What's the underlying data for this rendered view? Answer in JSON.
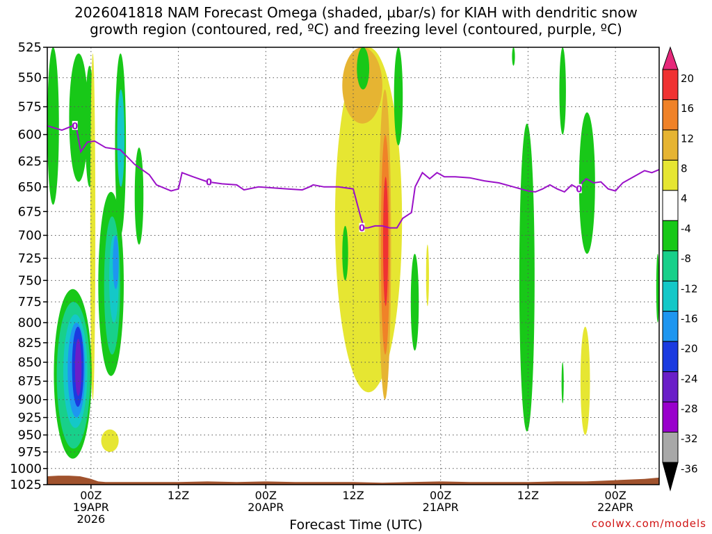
{
  "title_line1": "2026041818 NAM Forecast Omega (shaded, µbar/s) for KIAH with dendritic snow",
  "title_line2": "growth region (contoured, red, ºC) and freezing level (contoured, purple, ºC)",
  "credit": "coolwx.com/models",
  "chart_data": {
    "type": "heatmap",
    "xlabel": "Forecast Time (UTC)",
    "ylabel": "",
    "x_unit": "forecast hour from 2026-04-18 18Z",
    "xlim": [
      0,
      84
    ],
    "ylim": [
      525,
      1025
    ],
    "y_scale": "log-pressure",
    "y_ticks": [
      525,
      550,
      575,
      600,
      625,
      650,
      675,
      700,
      725,
      750,
      775,
      800,
      825,
      850,
      875,
      900,
      925,
      950,
      975,
      1000,
      1025
    ],
    "x_ticks": [
      {
        "x": 6,
        "labels": [
          "00Z",
          "19APR",
          "2026"
        ]
      },
      {
        "x": 18,
        "labels": [
          "12Z"
        ]
      },
      {
        "x": 30,
        "labels": [
          "00Z",
          "20APR"
        ]
      },
      {
        "x": 42,
        "labels": [
          "12Z"
        ]
      },
      {
        "x": 54,
        "labels": [
          "00Z",
          "21APR"
        ]
      },
      {
        "x": 66,
        "labels": [
          "12Z"
        ]
      },
      {
        "x": 78,
        "labels": [
          "00Z",
          "22APR"
        ]
      }
    ],
    "grid": true,
    "colorbar": {
      "levels": [
        -36,
        -32,
        -28,
        -24,
        -20,
        -16,
        -12,
        -8,
        -4,
        4,
        8,
        12,
        16,
        20
      ],
      "colors": [
        "#000000",
        "#a8a8a8",
        "#9900cc",
        "#6a1fc8",
        "#1b3be0",
        "#1e96f0",
        "#14c8c8",
        "#18d08a",
        "#18c818",
        "#ffffff",
        "#e6e632",
        "#e6b432",
        "#f08228",
        "#f03232",
        "#e6287a"
      ],
      "labeled": [
        20,
        16,
        12,
        8,
        4,
        -4,
        -8,
        -12,
        -16,
        -20,
        -24,
        -28,
        -32,
        -36
      ]
    },
    "freezing_level": {
      "label": "0",
      "color": "#9a10c8",
      "points": [
        [
          0,
          592
        ],
        [
          2,
          596
        ],
        [
          3.5,
          592
        ],
        [
          4,
          594
        ],
        [
          4.6,
          616
        ],
        [
          5.5,
          607
        ],
        [
          6.5,
          606
        ],
        [
          8,
          612
        ],
        [
          10,
          614
        ],
        [
          12,
          628
        ],
        [
          14,
          638
        ],
        [
          15,
          648
        ],
        [
          17,
          654
        ],
        [
          18,
          652
        ],
        [
          18.5,
          636
        ],
        [
          20,
          640
        ],
        [
          22,
          645
        ],
        [
          24,
          647
        ],
        [
          26,
          648
        ],
        [
          27,
          653
        ],
        [
          29,
          650
        ],
        [
          31,
          651
        ],
        [
          33,
          652
        ],
        [
          35,
          653
        ],
        [
          36,
          650
        ],
        [
          36.5,
          648
        ],
        [
          38,
          650
        ],
        [
          40,
          650
        ],
        [
          42,
          652
        ],
        [
          43,
          680
        ],
        [
          43.5,
          692
        ],
        [
          44,
          692
        ],
        [
          45,
          690
        ],
        [
          46,
          690
        ],
        [
          47,
          692
        ],
        [
          48,
          692
        ],
        [
          48.8,
          682
        ],
        [
          50,
          676
        ],
        [
          50.5,
          650
        ],
        [
          51.5,
          636
        ],
        [
          52.5,
          642
        ],
        [
          53.5,
          636
        ],
        [
          54.5,
          640
        ],
        [
          56,
          640
        ],
        [
          58,
          641
        ],
        [
          60,
          644
        ],
        [
          62,
          646
        ],
        [
          64,
          650
        ],
        [
          66,
          654
        ],
        [
          67,
          655
        ],
        [
          68,
          652
        ],
        [
          69,
          648
        ],
        [
          70,
          652
        ],
        [
          71,
          655
        ],
        [
          72,
          648
        ],
        [
          73,
          652
        ],
        [
          73.5,
          645
        ],
        [
          74,
          642
        ],
        [
          75,
          646
        ],
        [
          76,
          645
        ],
        [
          77,
          652
        ],
        [
          78,
          654
        ],
        [
          79,
          646
        ],
        [
          80,
          642
        ],
        [
          81,
          638
        ],
        [
          82,
          634
        ],
        [
          83,
          636
        ],
        [
          84,
          633
        ]
      ]
    },
    "omega_features": [
      {
        "x": [
          0,
          1.6
        ],
        "p": [
          525,
          668
        ],
        "value": -6
      },
      {
        "x": [
          3,
          5.6
        ],
        "p": [
          530,
          645
        ],
        "value": -6
      },
      {
        "x": [
          5.2,
          6.4
        ],
        "p": [
          540,
          650
        ],
        "value": -6
      },
      {
        "x": [
          5.9,
          6.6
        ],
        "p": [
          530,
          900
        ],
        "value": 6
      },
      {
        "x": [
          9.3,
          10.8
        ],
        "p": [
          530,
          700
        ],
        "value": -6
      },
      {
        "x": [
          9.6,
          10.6
        ],
        "p": [
          560,
          650
        ],
        "value": -14
      },
      {
        "x": [
          12,
          13.2
        ],
        "p": [
          612,
          710
        ],
        "value": -6
      },
      {
        "x": [
          7,
          10.5
        ],
        "p": [
          655,
          868
        ],
        "value": -6
      },
      {
        "x": [
          7.8,
          10.0
        ],
        "p": [
          680,
          840
        ],
        "value": -10
      },
      {
        "x": [
          8.5,
          9.8
        ],
        "p": [
          700,
          800
        ],
        "value": -14
      },
      {
        "x": [
          9.0,
          9.8
        ],
        "p": [
          700,
          760
        ],
        "value": -18
      },
      {
        "x": [
          0.9,
          6.1
        ],
        "p": [
          760,
          985
        ],
        "value": -6
      },
      {
        "x": [
          1.3,
          5.9
        ],
        "p": [
          775,
          970
        ],
        "value": -10
      },
      {
        "x": [
          2.2,
          5.5
        ],
        "p": [
          790,
          940
        ],
        "value": -14
      },
      {
        "x": [
          2.8,
          5.2
        ],
        "p": [
          800,
          925
        ],
        "value": -18
      },
      {
        "x": [
          3.4,
          5.0
        ],
        "p": [
          805,
          910
        ],
        "value": -22
      },
      {
        "x": [
          3.8,
          4.7
        ],
        "p": [
          820,
          895
        ],
        "value": -26
      },
      {
        "x": [
          7.4,
          9.8
        ],
        "p": [
          942,
          975
        ],
        "value": 6
      },
      {
        "x": [
          39.5,
          48.7
        ],
        "p": [
          525,
          890
        ],
        "value": 6
      },
      {
        "x": [
          40.5,
          46
        ],
        "p": [
          525,
          590
        ],
        "value": 10
      },
      {
        "x": [
          45.5,
          47.2
        ],
        "p": [
          560,
          900
        ],
        "value": 10
      },
      {
        "x": [
          45.8,
          47.0
        ],
        "p": [
          600,
          840
        ],
        "value": 14
      },
      {
        "x": [
          46.1,
          46.8
        ],
        "p": [
          640,
          780
        ],
        "value": 18
      },
      {
        "x": [
          42.5,
          44.2
        ],
        "p": [
          525,
          560
        ],
        "value": -6
      },
      {
        "x": [
          47.6,
          48.8
        ],
        "p": [
          525,
          610
        ],
        "value": -6
      },
      {
        "x": [
          40.5,
          41.3
        ],
        "p": [
          690,
          750
        ],
        "value": -6
      },
      {
        "x": [
          49.9,
          51.0
        ],
        "p": [
          720,
          835
        ],
        "value": -6
      },
      {
        "x": [
          52,
          52.4
        ],
        "p": [
          710,
          780
        ],
        "value": 6
      },
      {
        "x": [
          64.8,
          66.9
        ],
        "p": [
          590,
          945
        ],
        "value": -6
      },
      {
        "x": [
          70.3,
          71.2
        ],
        "p": [
          525,
          600
        ],
        "value": -6
      },
      {
        "x": [
          73,
          75.2
        ],
        "p": [
          580,
          720
        ],
        "value": -6
      },
      {
        "x": [
          73.2,
          74.5
        ],
        "p": [
          805,
          950
        ],
        "value": 6
      },
      {
        "x": [
          70.6,
          70.9
        ],
        "p": [
          850,
          905
        ],
        "value": -6
      },
      {
        "x": [
          83.6,
          84
        ],
        "p": [
          720,
          800
        ],
        "value": -6
      },
      {
        "x": [
          63.8,
          64.2
        ],
        "p": [
          525,
          540
        ],
        "value": -6
      }
    ],
    "surface_fill_color": "#a0522d"
  }
}
